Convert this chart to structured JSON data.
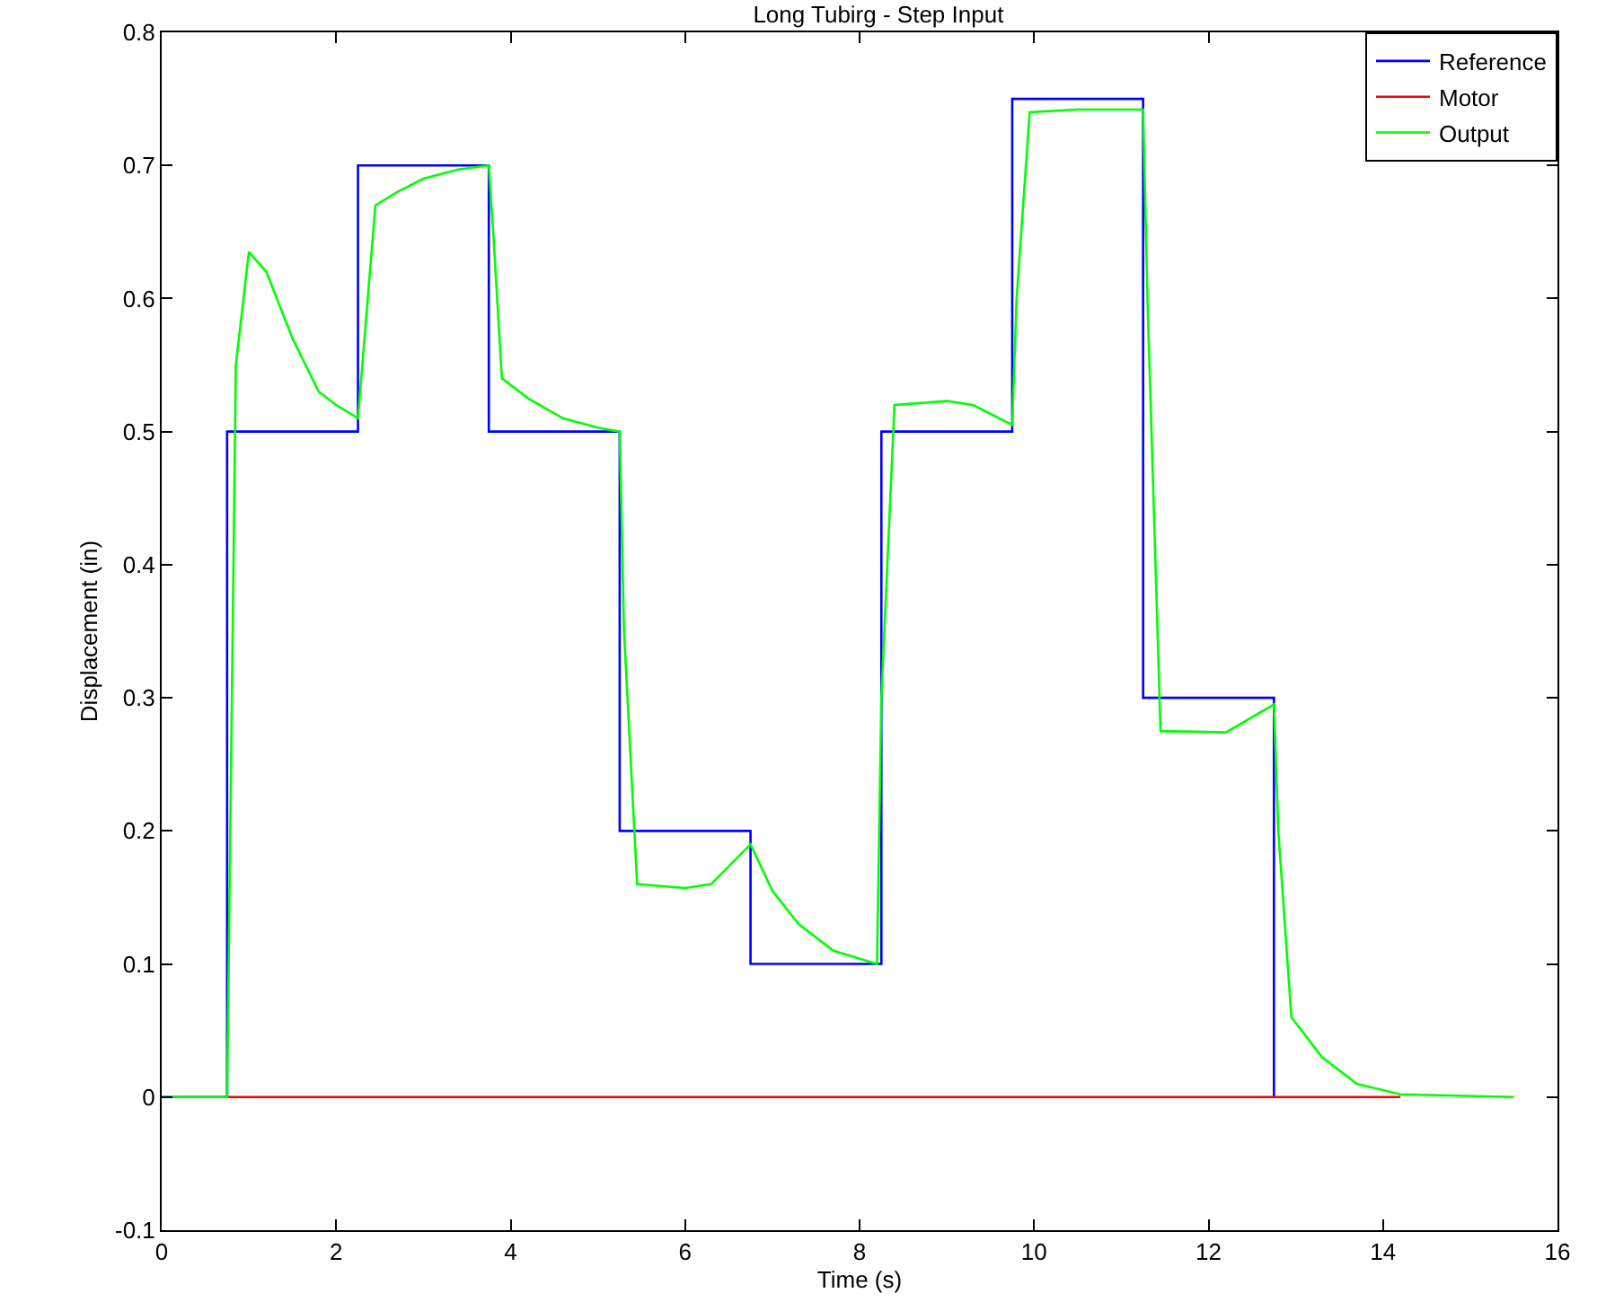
{
  "chart_data": {
    "type": "line",
    "title": "Long Tubirg - Step Input",
    "xlabel": "Time (s)",
    "ylabel": "Displacement (in)",
    "xlim": [
      0,
      16
    ],
    "xticks": [
      0,
      2,
      4,
      6,
      8,
      10,
      12,
      14,
      16
    ],
    "ylim": [
      -0.1,
      0.8
    ],
    "yticks": [
      -0.1,
      0,
      0.1,
      0.2,
      0.3,
      0.4,
      0.5,
      0.6,
      0.7,
      0.8
    ],
    "grid": false,
    "legend": "top right",
    "marker": "none",
    "line_style": "solid",
    "series": [
      {
        "name": "Reference",
        "type": "step",
        "color": "#0000ff",
        "x": [
          0,
          0.75,
          2.25,
          3.75,
          5.25,
          6.75,
          8.25,
          9.75,
          11.25,
          12.75
        ],
        "values": [
          0,
          0.5,
          0.7,
          0.5,
          0.2,
          0.1,
          0.5,
          0.75,
          0.3,
          0
        ]
      },
      {
        "name": "Motor",
        "color": "#ff0000",
        "x": [
          0.75,
          14.2
        ],
        "values": [
          0,
          0
        ]
      },
      {
        "name": "Output",
        "color": "#00ff00",
        "x": [
          0,
          0.75,
          0.85,
          1.0,
          1.2,
          1.5,
          1.8,
          2.0,
          2.25,
          2.3,
          2.45,
          2.7,
          3.0,
          3.4,
          3.75,
          3.8,
          3.9,
          4.2,
          4.6,
          5.0,
          5.25,
          5.3,
          5.45,
          6.0,
          6.3,
          6.75,
          7.0,
          7.3,
          7.7,
          8.2,
          8.25,
          8.4,
          9.0,
          9.3,
          9.75,
          9.8,
          9.95,
          10.5,
          11.25,
          11.3,
          11.45,
          12.2,
          12.75,
          12.8,
          12.95,
          13.3,
          13.7,
          14.2,
          15.5
        ],
        "values": [
          0,
          0,
          0.55,
          0.635,
          0.62,
          0.57,
          0.53,
          0.52,
          0.51,
          0.55,
          0.67,
          0.68,
          0.69,
          0.697,
          0.7,
          0.65,
          0.54,
          0.525,
          0.51,
          0.503,
          0.5,
          0.35,
          0.16,
          0.157,
          0.16,
          0.19,
          0.155,
          0.13,
          0.11,
          0.1,
          0.3,
          0.52,
          0.523,
          0.52,
          0.505,
          0.6,
          0.74,
          0.742,
          0.742,
          0.6,
          0.275,
          0.274,
          0.295,
          0.2,
          0.06,
          0.03,
          0.01,
          0.002,
          0
        ]
      }
    ]
  }
}
